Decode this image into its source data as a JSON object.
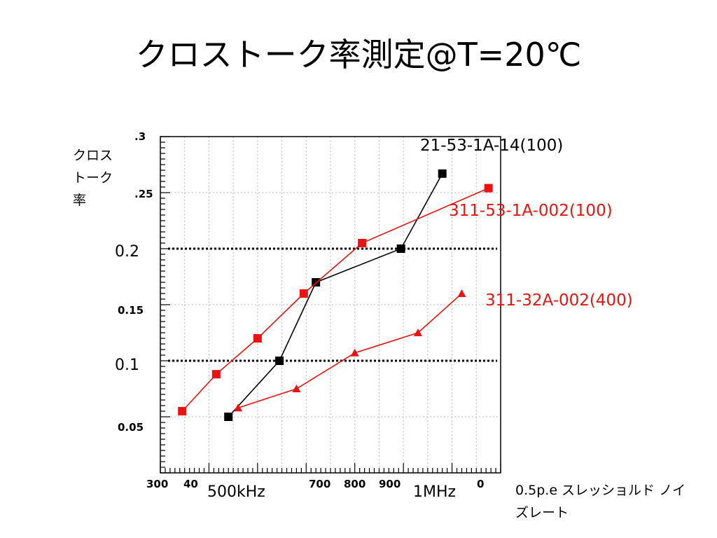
{
  "slide": {
    "title": "クロストーク率測定@T=20℃"
  },
  "chart_data": {
    "type": "line",
    "ylabel": "クロストーク率",
    "xlabel": "0.5p.e スレッショルド ノイズレート",
    "xlim": [
      300,
      1000
    ],
    "ylim": [
      0.0,
      0.3
    ],
    "grid": true,
    "y_ticks": [
      "0.05",
      "0.15"
    ],
    "y_ticks_partial": [
      ".3",
      ".25"
    ],
    "x_ticks": [
      "300",
      "40",
      "700",
      "800",
      "900",
      "0"
    ],
    "y_callouts": [
      {
        "label": "0.2",
        "value": 0.2
      },
      {
        "label": "0.1",
        "value": 0.1
      }
    ],
    "x_callouts": [
      "500kHz",
      "1MHz"
    ],
    "series": [
      {
        "name": "21-53-1A-14(100)",
        "color": "#000000",
        "marker": "square",
        "points": [
          [
            440,
            0.05
          ],
          [
            545,
            0.1
          ],
          [
            620,
            0.17
          ],
          [
            795,
            0.2
          ],
          [
            880,
            0.267
          ]
        ]
      },
      {
        "name": "311-53-1A-002(100)",
        "color": "#ee1111",
        "marker": "square",
        "points": [
          [
            345,
            0.055
          ],
          [
            415,
            0.088
          ],
          [
            500,
            0.12
          ],
          [
            595,
            0.16
          ],
          [
            715,
            0.205
          ],
          [
            975,
            0.254
          ]
        ]
      },
      {
        "name": "311-32A-002(400)",
        "color": "#ee1111",
        "marker": "triangle",
        "points": [
          [
            460,
            0.058
          ],
          [
            580,
            0.075
          ],
          [
            700,
            0.107
          ],
          [
            830,
            0.125
          ],
          [
            920,
            0.16
          ]
        ]
      }
    ]
  }
}
